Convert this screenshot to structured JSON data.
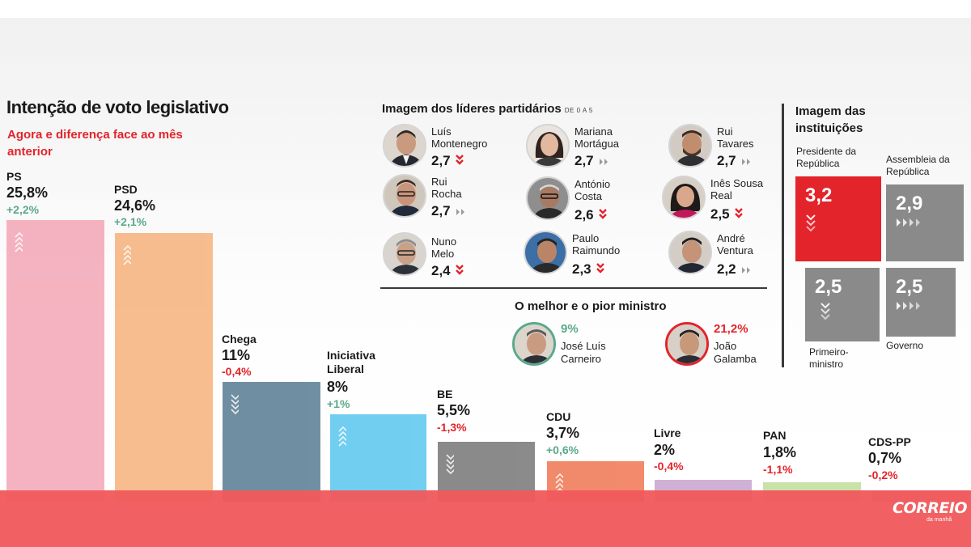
{
  "chart_data": [
    {
      "type": "bar",
      "title": "Intenção de voto legislativo",
      "subtitle": "Agora e diferença face ao mês anterior",
      "categories": [
        "PS",
        "PSD",
        "Chega",
        "Iniciativa Liberal",
        "BE",
        "CDU",
        "Livre",
        "PAN",
        "CDS-PP"
      ],
      "values": [
        25.8,
        24.6,
        11,
        8,
        5.5,
        3.7,
        2,
        1.8,
        0.7
      ],
      "value_labels": [
        "25,8%",
        "24,6%",
        "11%",
        "8%",
        "5,5%",
        "3,7%",
        "2%",
        "1,8%",
        "0,7%"
      ],
      "diff_labels": [
        "+2,2%",
        "+2,1%",
        "-0,4%",
        "+1%",
        "-1,3%",
        "+0,6%",
        "-0,4%",
        "-1,1%",
        "-0,2%"
      ],
      "diffs": [
        2.2,
        2.1,
        -0.4,
        1.0,
        -1.3,
        0.6,
        -0.4,
        -1.1,
        -0.2
      ],
      "colors": [
        "#f4a9b8",
        "#f6b47f",
        "#5d7f96",
        "#5ec8ef",
        "#7b7b7b",
        "#f07a57",
        "#c9a6cf",
        "#c3dd9e",
        "#b5a8d6"
      ]
    },
    {
      "type": "table",
      "title": "Imagem dos líderes partidários",
      "scale": "DE 0 A 5",
      "leaders": [
        {
          "name": "Luís Montenegro",
          "score": 2.7,
          "score_label": "2,7",
          "trend": "down"
        },
        {
          "name": "Mariana Mortágua",
          "score": 2.7,
          "score_label": "2,7",
          "trend": "same"
        },
        {
          "name": "Rui Tavares",
          "score": 2.7,
          "score_label": "2,7",
          "trend": "same"
        },
        {
          "name": "Rui Rocha",
          "score": 2.7,
          "score_label": "2,7",
          "trend": "same"
        },
        {
          "name": "António Costa",
          "score": 2.6,
          "score_label": "2,6",
          "trend": "down"
        },
        {
          "name": "Inês Sousa Real",
          "score": 2.5,
          "score_label": "2,5",
          "trend": "down"
        },
        {
          "name": "Nuno Melo",
          "score": 2.4,
          "score_label": "2,4",
          "trend": "down"
        },
        {
          "name": "Paulo Raimundo",
          "score": 2.3,
          "score_label": "2,3",
          "trend": "down"
        },
        {
          "name": "André Ventura",
          "score": 2.2,
          "score_label": "2,2",
          "trend": "same"
        }
      ]
    },
    {
      "type": "table",
      "title": "O melhor e o pior ministro",
      "ministers": [
        {
          "name": "José Luís Carneiro",
          "pct": 9,
          "pct_label": "9%",
          "kind": "best",
          "color": "#5aa98b"
        },
        {
          "name": "João Galamba",
          "pct": 21.2,
          "pct_label": "21,2%",
          "kind": "worst",
          "color": "#e3242b"
        }
      ]
    },
    {
      "type": "table",
      "title": "Imagem das instituições",
      "institutions": [
        {
          "name": "Presidente da República",
          "score": 3.2,
          "score_label": "3,2",
          "trend": "down",
          "color": "#e3242b"
        },
        {
          "name": "Assembleia da República",
          "score": 2.9,
          "score_label": "2,9",
          "trend": "same",
          "color": "#8a8a8a"
        },
        {
          "name": "Primeiro-ministro",
          "score": 2.5,
          "score_label": "2,5",
          "trend": "down",
          "color": "#8a8a8a"
        },
        {
          "name": "Governo",
          "score": 2.5,
          "score_label": "2,5",
          "trend": "same",
          "color": "#8a8a8a"
        }
      ]
    }
  ],
  "labels": {
    "title": "Intenção de voto legislativo",
    "subtitle": "Agora e diferença face ao mês anterior",
    "leaders_title": "Imagem dos líderes partidários",
    "leaders_scale": "DE 0 A 5",
    "ministers_title": "O melhor e o pior ministro",
    "inst_title": "Imagem das instituições"
  },
  "parties": {
    "ps": {
      "label": "PS",
      "value": "25,8%",
      "diff": "+2,2%"
    },
    "psd": {
      "label": "PSD",
      "value": "24,6%",
      "diff": "+2,1%"
    },
    "chega": {
      "label": "Chega",
      "value": "11%",
      "diff": "-0,4%"
    },
    "il": {
      "label": "Iniciativa Liberal",
      "value": "8%",
      "diff": "+1%"
    },
    "be": {
      "label": "BE",
      "value": "5,5%",
      "diff": "-1,3%"
    },
    "cdu": {
      "label": "CDU",
      "value": "3,7%",
      "diff": "+0,6%"
    },
    "livre": {
      "label": "Livre",
      "value": "2%",
      "diff": "-0,4%"
    },
    "pan": {
      "label": "PAN",
      "value": "1,8%",
      "diff": "-1,1%"
    },
    "cds": {
      "label": "CDS-PP",
      "value": "0,7%",
      "diff": "-0,2%"
    }
  },
  "leaders": {
    "montenegro": {
      "name": "Luís Montenegro",
      "score": "2,7"
    },
    "mortagua": {
      "name": "Mariana Mortágua",
      "score": "2,7"
    },
    "tavares": {
      "name": "Rui Tavares",
      "score": "2,7"
    },
    "rocha": {
      "name": "Rui Rocha",
      "score": "2,7"
    },
    "costa": {
      "name": "António Costa",
      "score": "2,6"
    },
    "real": {
      "name": "Inês Sousa Real",
      "score": "2,5"
    },
    "melo": {
      "name": "Nuno Melo",
      "score": "2,4"
    },
    "raimundo": {
      "name": "Paulo Raimundo",
      "score": "2,3"
    },
    "ventura": {
      "name": "André Ventura",
      "score": "2,2"
    }
  },
  "ministers": {
    "best": {
      "name": "José Luís Carneiro",
      "pct": "9%"
    },
    "worst": {
      "name": "João Galamba",
      "pct": "21,2%"
    }
  },
  "institutions": {
    "pr": {
      "name": "Presidente da República",
      "score": "3,2"
    },
    "ar": {
      "name": "Assembleia da República",
      "score": "2,9"
    },
    "pm": {
      "name": "Primeiro-ministro",
      "score": "2,5"
    },
    "gov": {
      "name": "Governo",
      "score": "2,5"
    }
  },
  "brand": {
    "name": "CORREIO",
    "sub": "da manhã"
  },
  "colors": {
    "up": "#5aa98b",
    "down": "#e3242b",
    "footer": "#f05a5c"
  }
}
